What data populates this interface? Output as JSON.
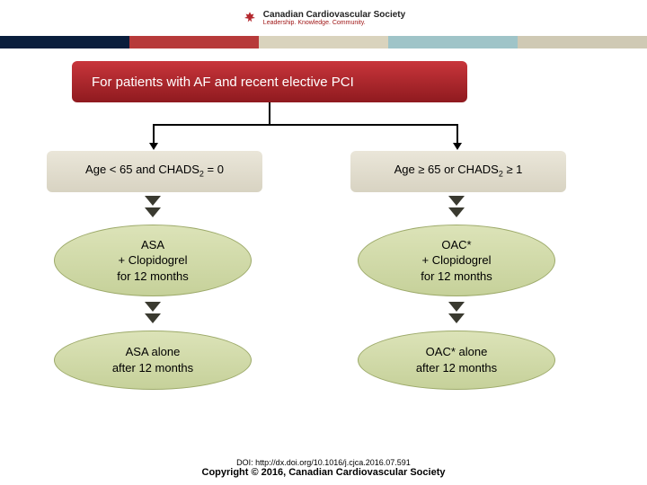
{
  "header": {
    "org_name": "Canadian Cardiovascular Society",
    "tagline": "Leadership. Knowledge. Community.",
    "logo_color": "#b4282e"
  },
  "stripes": {
    "colors": [
      "#0a1e3c",
      "#b73a3a",
      "#d9d3bd",
      "#9fc4c8",
      "#cfc9b4"
    ]
  },
  "flowchart": {
    "title": {
      "text": "For patients with AF and recent elective PCI",
      "bg_gradient_top": "#c8353b",
      "bg_gradient_bottom": "#8f1a1f",
      "text_color": "#ffffff"
    },
    "branches": {
      "left": {
        "label_html": "Age < 65 and CHADS<sub>2</sub> = 0",
        "box_bg_top": "#eae6d9",
        "box_bg_bottom": "#d8d3c2",
        "treatment_html": "ASA<br>+ Clopidogrel<br>for 12 months",
        "followup_html": "ASA alone<br>after 12 months"
      },
      "right": {
        "label_html": "Age ≥ 65 or CHADS<sub>2</sub> ≥ 1",
        "box_bg_top": "#eae6d9",
        "box_bg_bottom": "#d8d3c2",
        "treatment_html": "OAC*<br>+ Clopidogrel<br>for 12 months",
        "followup_html": "OAC* alone<br>after 12 months"
      }
    },
    "ellipse_style": {
      "bg_top": "#dce3b8",
      "bg_bottom": "#c6d19a",
      "border_color": "#9daa6a"
    },
    "arrow": {
      "line_color": "#000000",
      "dbl_color": "#3a3a30"
    }
  },
  "footer": {
    "doi": "DOI: http://dx.doi.org/10.1016/j.cjca.2016.07.591",
    "copyright": "Copyright © 2016, Canadian Cardiovascular Society"
  }
}
